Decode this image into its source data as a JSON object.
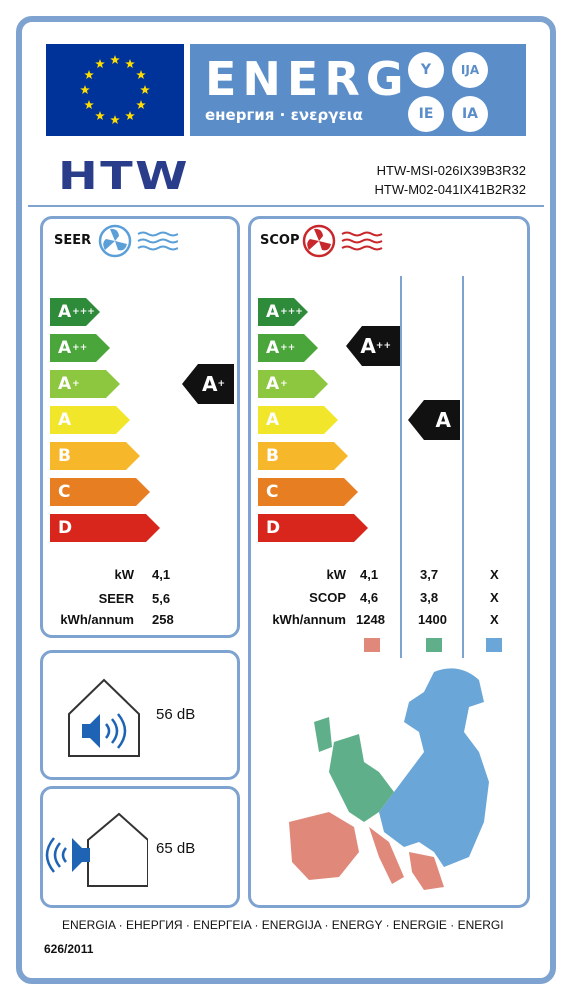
{
  "header": {
    "energy_word": "ENERG",
    "energy_sub": "енергия · ενεργεια",
    "lang_codes": [
      "Y",
      "IJA",
      "IE",
      "IA"
    ]
  },
  "brand": "HTW",
  "models": [
    "HTW-MSI-026IX39B3R32",
    "HTW-M02-041IX41B2R32"
  ],
  "cooling": {
    "label": "SEER",
    "rating": "A",
    "rating_sup": "+",
    "specs": [
      {
        "label": "kW",
        "value": "4,1"
      },
      {
        "label": "SEER",
        "value": "5,6"
      },
      {
        "label": "kWh/annum",
        "value": "258"
      }
    ]
  },
  "heating": {
    "label": "SCOP",
    "rating_average": "A",
    "rating_average_sup": "++",
    "rating_warmer": "A",
    "specs": [
      {
        "label": "kW",
        "values": [
          "4,1",
          "3,7",
          "X"
        ]
      },
      {
        "label": "SCOP",
        "values": [
          "4,6",
          "3,8",
          "X"
        ]
      },
      {
        "label": "kWh/annum",
        "values": [
          "1248",
          "1400",
          "X"
        ]
      }
    ],
    "zone_colors": [
      "#e0897a",
      "#5fb08a",
      "#6aa6d8"
    ]
  },
  "scale": [
    {
      "letter": "A",
      "sup": "+++",
      "color": "#2e8b3a"
    },
    {
      "letter": "A",
      "sup": "++",
      "color": "#4aa63b"
    },
    {
      "letter": "A",
      "sup": "+",
      "color": "#8dc63f"
    },
    {
      "letter": "A",
      "sup": "",
      "color": "#f1e62a"
    },
    {
      "letter": "B",
      "sup": "",
      "color": "#f6b72a"
    },
    {
      "letter": "C",
      "sup": "",
      "color": "#e87e22"
    },
    {
      "letter": "D",
      "sup": "",
      "color": "#d9261c"
    }
  ],
  "noise": {
    "indoor": "56 dB",
    "outdoor": "65 dB"
  },
  "footer": {
    "languages": "ENERGIA · ЕНЕРГИЯ · ΕΝΕΡΓΕΙΑ · ENERGIJA · ENERGY · ENERGIE · ENERGI",
    "regulation": "626/2011"
  }
}
